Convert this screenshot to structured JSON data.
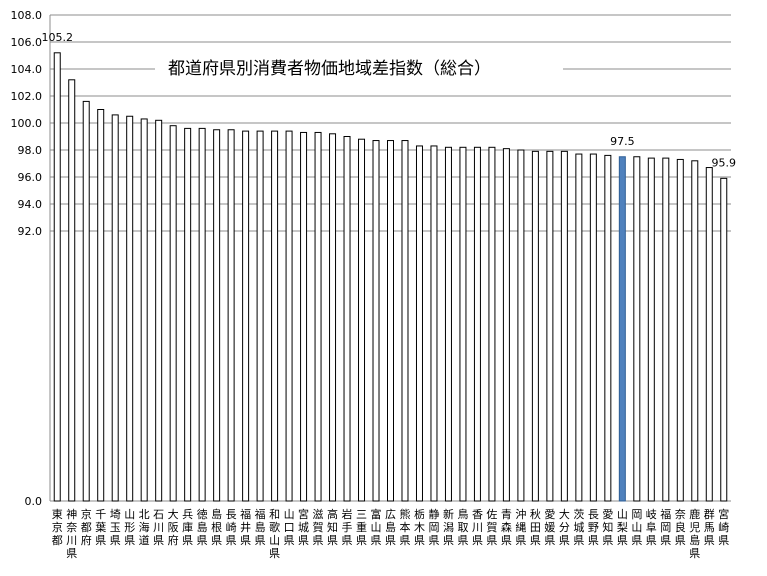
{
  "chart_data": {
    "type": "bar",
    "title": "都道府県別消費者物価地域差指数（総合）",
    "xlabel": "",
    "ylabel": "",
    "ylim": [
      90,
      108
    ],
    "axis_break": "0.0 shown at bottom; axis jumps from 0 to 92",
    "yticks": [
      "108.0",
      "106.0",
      "104.0",
      "102.0",
      "100.0",
      "98.0",
      "96.0",
      "94.0",
      "92.0",
      "0.0"
    ],
    "grid": true,
    "legend": "none",
    "highlight_color": "#4f81bd",
    "bar_color": "#ffffff",
    "categories": [
      "東京都",
      "神奈川県",
      "京都府",
      "千葉県",
      "埼玉県",
      "山形県",
      "北海道",
      "石川県",
      "大阪府",
      "兵庫県",
      "徳島県",
      "島根県",
      "長崎県",
      "福井県",
      "福島県",
      "和歌山県",
      "山口県",
      "宮城県",
      "滋賀県",
      "高知県",
      "岩手県",
      "三重県",
      "富山県",
      "広島県",
      "熊本県",
      "栃木県",
      "静岡県",
      "新潟県",
      "鳥取県",
      "香川県",
      "佐賀県",
      "青森県",
      "沖縄県",
      "秋田県",
      "愛媛県",
      "大分県",
      "茨城県",
      "長野県",
      "愛知県",
      "山梨県",
      "岡山県",
      "岐阜県",
      "福岡県",
      "奈良県",
      "鹿児島県",
      "群馬県",
      "宮崎県"
    ],
    "values": [
      105.2,
      103.2,
      101.6,
      101.0,
      100.6,
      100.5,
      100.3,
      100.2,
      99.8,
      99.6,
      99.6,
      99.5,
      99.5,
      99.4,
      99.4,
      99.4,
      99.4,
      99.3,
      99.3,
      99.2,
      99.0,
      98.8,
      98.7,
      98.7,
      98.7,
      98.3,
      98.3,
      98.2,
      98.2,
      98.2,
      98.2,
      98.1,
      98.0,
      97.9,
      97.9,
      97.9,
      97.7,
      97.7,
      97.6,
      97.5,
      97.5,
      97.4,
      97.4,
      97.3,
      97.2,
      96.7,
      95.9
    ],
    "highlight_index": 39,
    "data_labels": [
      {
        "index": 0,
        "text": "105.2"
      },
      {
        "index": 39,
        "text": "97.5"
      },
      {
        "index": 46,
        "text": "95.9"
      }
    ]
  }
}
